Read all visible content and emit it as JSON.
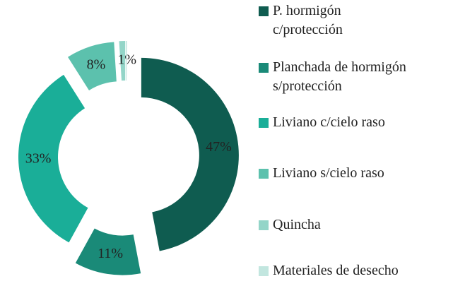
{
  "chart_data": {
    "type": "donut",
    "categories": [
      "P. hormigón c/protección",
      "Planchada de hormigón s/protección",
      "Liviano c/cielo raso",
      "Liviano s/cielo raso",
      "Quincha",
      "Materiales de desecho"
    ],
    "values": [
      47,
      11,
      33,
      8,
      1,
      0
    ],
    "value_labels": [
      "47%",
      "11%",
      "33%",
      "8%",
      "1%",
      null
    ],
    "colors": [
      "#0f5c50",
      "#1a8a78",
      "#1aae98",
      "#5cc1ad",
      "#93d5c8",
      "#c2e6df"
    ],
    "legend": "right"
  }
}
